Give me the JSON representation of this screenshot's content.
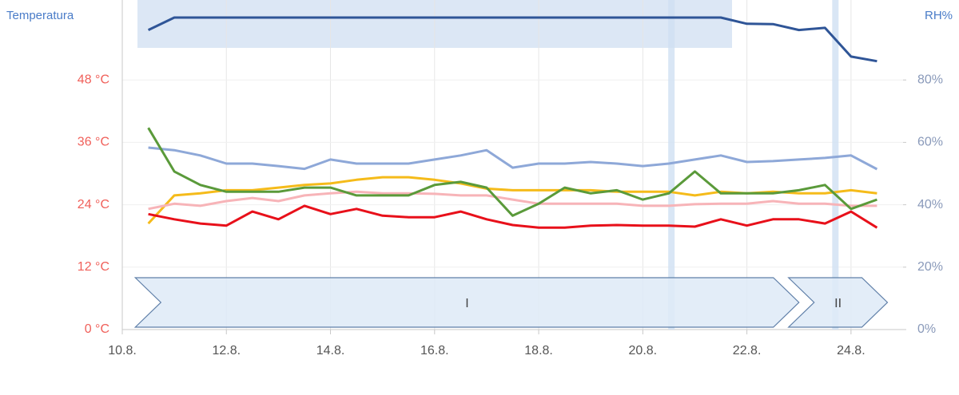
{
  "chart_data": {
    "type": "line",
    "ylabel": "Temperatura",
    "y2label": "RH%",
    "x": [
      10.5,
      11,
      11.5,
      12,
      12.5,
      13,
      13.5,
      14,
      14.5,
      15,
      15.5,
      16,
      16.5,
      17,
      17.5,
      18,
      18.5,
      19,
      19.5,
      20,
      20.5,
      21,
      21.5,
      22,
      22.5,
      23,
      23.5,
      24,
      24.5
    ],
    "xlim": [
      10,
      25
    ],
    "xticks": [
      {
        "value": 10,
        "label": "10.8."
      },
      {
        "value": 12,
        "label": "12.8."
      },
      {
        "value": 14,
        "label": "14.8."
      },
      {
        "value": 16,
        "label": "16.8."
      },
      {
        "value": 18,
        "label": "18.8."
      },
      {
        "value": 20,
        "label": "20.8."
      },
      {
        "value": 22,
        "label": "22.8."
      },
      {
        "value": 24,
        "label": "24.8."
      }
    ],
    "ylim": [
      0,
      60
    ],
    "yticks": [
      {
        "value": 0,
        "label": "0 °C"
      },
      {
        "value": 12,
        "label": "12 °C"
      },
      {
        "value": 24,
        "label": "24 °C"
      },
      {
        "value": 36,
        "label": "36 °C"
      },
      {
        "value": 48,
        "label": "48 °C"
      }
    ],
    "y2lim": [
      0,
      100
    ],
    "y2ticks": [
      {
        "value": 0,
        "label": "0%"
      },
      {
        "value": 20,
        "label": "20%"
      },
      {
        "value": 40,
        "label": "40%"
      },
      {
        "value": 60,
        "label": "60%"
      },
      {
        "value": 80,
        "label": "80%"
      }
    ],
    "grid": true,
    "series": [
      {
        "color": "#2f5597",
        "axis": "y2",
        "values": [
          96,
          100,
          100,
          100,
          100,
          100,
          100,
          100,
          100,
          100,
          100,
          100,
          100,
          100,
          100,
          100,
          100,
          100,
          100,
          100,
          100,
          100,
          100,
          98,
          97.9,
          96,
          96.7,
          87.5,
          86
        ]
      },
      {
        "color": "#8ea8d8",
        "axis": "y2",
        "values": [
          58.3,
          57.5,
          55.8,
          53.2,
          53.2,
          52.4,
          51.5,
          54.5,
          53.2,
          53.2,
          53.2,
          54.5,
          55.8,
          57.5,
          51.9,
          53.2,
          53.2,
          53.7,
          53.2,
          52.4,
          53.2,
          54.5,
          55.8,
          53.7,
          54,
          54.5,
          55,
          55.8,
          51.4
        ]
      },
      {
        "color": "#f5bb1a",
        "values": [
          20.4,
          25.8,
          26.2,
          26.8,
          26.8,
          27.3,
          27.8,
          28.1,
          28.8,
          29.3,
          29.3,
          28.8,
          28.1,
          27.1,
          26.8,
          26.8,
          26.8,
          26.8,
          26.5,
          26.5,
          26.5,
          25.8,
          26.5,
          26.2,
          26.5,
          26.2,
          26.2,
          26.8,
          26.2
        ]
      },
      {
        "color": "#f7b4b8",
        "values": [
          23.2,
          24.2,
          23.8,
          24.7,
          25.3,
          24.7,
          25.8,
          26.2,
          26.5,
          26.2,
          26.2,
          26.1,
          25.8,
          25.8,
          25,
          24.2,
          24.2,
          24.2,
          24.2,
          23.8,
          23.8,
          24.1,
          24.2,
          24.2,
          24.7,
          24.2,
          24.2,
          23.8,
          23.8
        ]
      },
      {
        "color": "#5a9a3a",
        "values": [
          38.8,
          30.4,
          27.8,
          26.5,
          26.5,
          26.5,
          27.3,
          27.3,
          25.8,
          25.8,
          25.8,
          27.8,
          28.4,
          27.3,
          21.9,
          24.2,
          27.3,
          26.2,
          26.8,
          25,
          26.2,
          30.4,
          26.2,
          26.2,
          26.2,
          26.8,
          27.8,
          23.2,
          25
        ]
      },
      {
        "color": "#e8101a",
        "values": [
          22.2,
          21.2,
          20.4,
          20,
          22.7,
          21.2,
          23.8,
          22.2,
          23.2,
          21.9,
          21.6,
          21.6,
          22.7,
          21.2,
          20.1,
          19.6,
          19.6,
          20,
          20.1,
          20,
          20,
          19.8,
          21.2,
          20,
          21.2,
          21.2,
          20.4,
          22.7,
          19.6
        ]
      }
    ],
    "highlights": [
      20.55,
      23.7
    ],
    "phases": [
      {
        "label": "I",
        "start": 10.25,
        "end": 23.0
      },
      {
        "label": "II",
        "start": 22.8,
        "end": 24.7
      }
    ]
  }
}
